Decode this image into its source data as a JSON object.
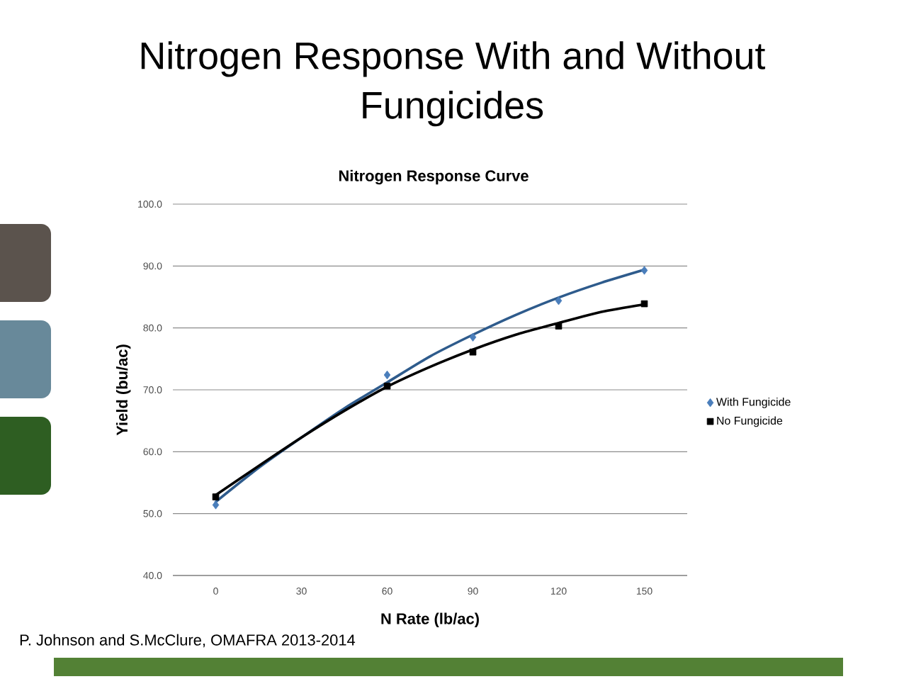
{
  "chart_data": {
    "type": "scatter",
    "title": "Nitrogen Response With and Without Fungicides",
    "subtitle": "Nitrogen Response Curve",
    "xlabel": "N Rate (lb/ac)",
    "ylabel": "Yield (bu/ac)",
    "xlim": [
      -15,
      165
    ],
    "xticks": [
      0,
      30,
      60,
      90,
      120,
      150
    ],
    "ylim": [
      40,
      100
    ],
    "yticks": [
      {
        "value": 40,
        "label": "40.0"
      },
      {
        "value": 50,
        "label": "50.0"
      },
      {
        "value": 60,
        "label": "60.0"
      },
      {
        "value": 70,
        "label": "70.0"
      },
      {
        "value": 80,
        "label": "80.0"
      },
      {
        "value": 90,
        "label": "90.0"
      },
      {
        "value": 100,
        "label": "100.0"
      }
    ],
    "grid": "y",
    "legend": "right",
    "series": [
      {
        "name": "With Fungicide",
        "marker": "diamond",
        "color": "#4a7ebb",
        "x": [
          0,
          60,
          90,
          120,
          150
        ],
        "values": [
          51.4,
          72.4,
          78.5,
          84.4,
          89.3
        ]
      },
      {
        "name": "No Fungicide",
        "marker": "square",
        "color": "#000000",
        "x": [
          0,
          60,
          90,
          120,
          150
        ],
        "values": [
          52.7,
          70.6,
          76.1,
          80.3,
          83.9
        ]
      },
      {
        "type": "line",
        "marker": "none",
        "color": "#2e5b8c",
        "x": [
          0,
          15,
          30,
          45,
          60,
          75,
          90,
          105,
          120,
          135,
          150
        ],
        "values": [
          51.9,
          57.4,
          62.3,
          67.0,
          71.2,
          75.4,
          78.9,
          82.1,
          84.9,
          87.3,
          89.4
        ]
      },
      {
        "type": "line",
        "marker": "none",
        "color": "#000000",
        "x": [
          0,
          15,
          30,
          45,
          60,
          75,
          90,
          105,
          120,
          135,
          150
        ],
        "values": [
          53.0,
          57.7,
          62.3,
          66.6,
          70.5,
          73.7,
          76.5,
          78.9,
          80.8,
          82.6,
          83.8
        ]
      }
    ],
    "annotations": [
      "P. Johnson and S.McClure, OMAFRA 2013-2014"
    ]
  }
}
